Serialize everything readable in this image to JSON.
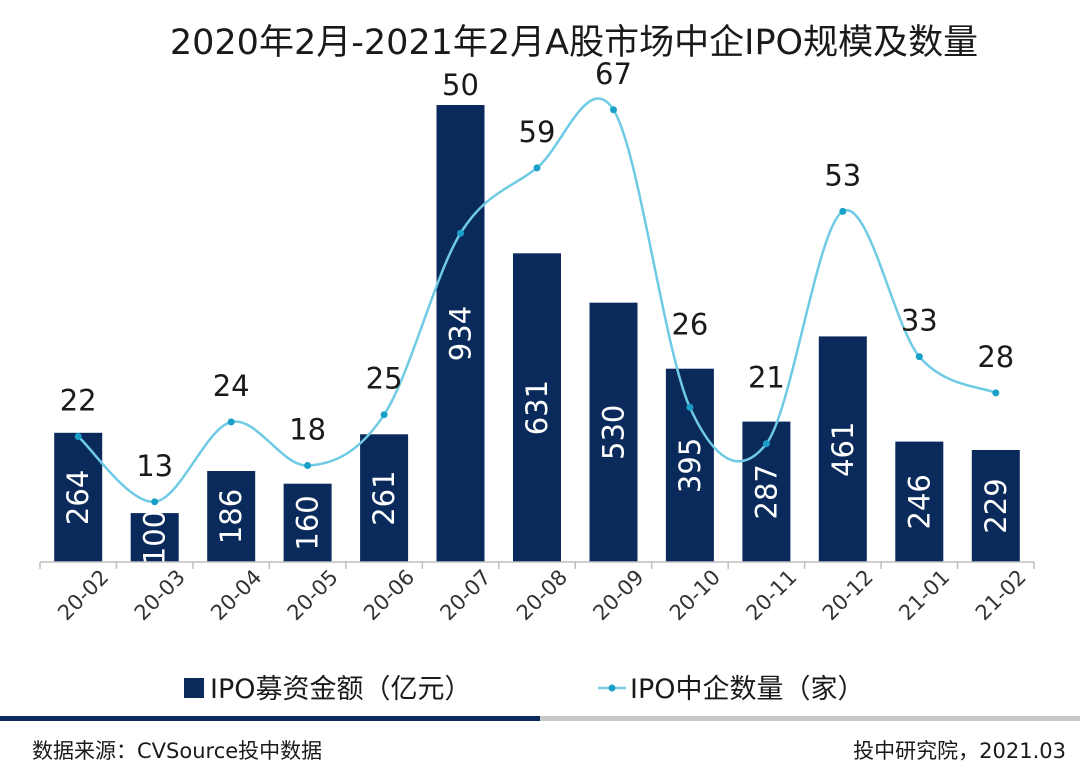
{
  "chart_data": {
    "type": "bar",
    "title": "2020年2月-2021年2月A股市场中企IPO规模及数量",
    "categories": [
      "20-02",
      "20-03",
      "20-04",
      "20-05",
      "20-06",
      "20-07",
      "20-08",
      "20-09",
      "20-10",
      "20-11",
      "20-12",
      "21-01",
      "21-02"
    ],
    "series": [
      {
        "name": "IPO募资金额（亿元）",
        "type": "bar",
        "axis": "left",
        "color": "#0b2a5c",
        "values": [
          264,
          100,
          186,
          160,
          261,
          934,
          631,
          530,
          395,
          287,
          461,
          246,
          229
        ]
      },
      {
        "name": "IPO中企数量（家）",
        "type": "line",
        "axis": "right",
        "color": "#6fcbe4",
        "marker_color": "#1aa0c8",
        "values": [
          22,
          13,
          24,
          18,
          25,
          50,
          59,
          67,
          26,
          21,
          53,
          33,
          28
        ]
      }
    ],
    "xlabel": "",
    "ylabel": "",
    "ylim_left": [
      0,
      934
    ],
    "ylim_right": [
      0,
      70
    ],
    "grid": false,
    "legend_position": "bottom"
  },
  "footer": {
    "source": "数据来源：CVSource投中数据",
    "credit": "投中研究院，2021.03"
  }
}
